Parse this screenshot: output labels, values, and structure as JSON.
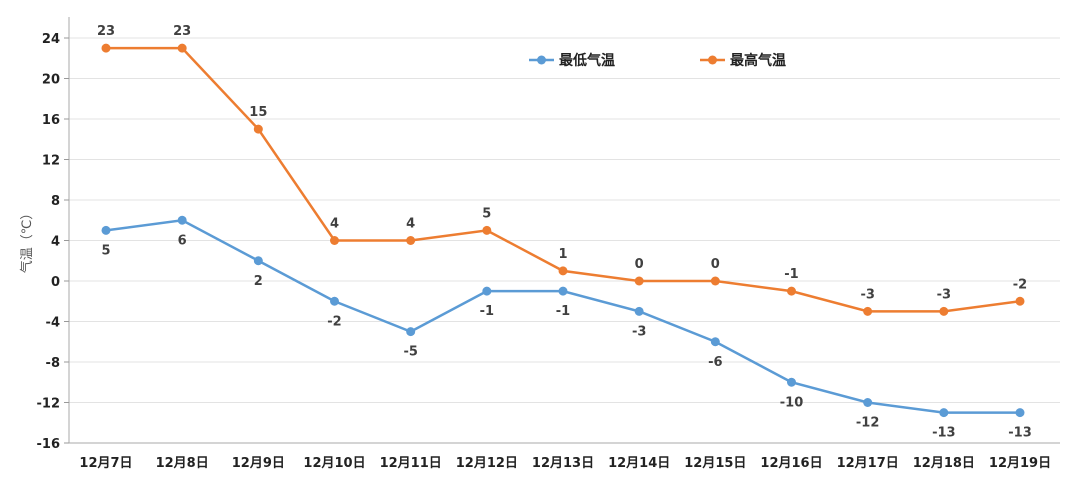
{
  "chart_data": {
    "type": "line",
    "title": "",
    "ylabel": "气温（℃）",
    "xlabel": "",
    "ylim": [
      -16,
      24
    ],
    "yticks": [
      24,
      20,
      16,
      12,
      8,
      4,
      0,
      -4,
      -8,
      -12,
      -16
    ],
    "grid": true,
    "legend_position": "top-center",
    "categories": [
      "12月7日",
      "12月8日",
      "12月9日",
      "12月10日",
      "12月11日",
      "12月12日",
      "12月13日",
      "12月14日",
      "12月15日",
      "12月16日",
      "12月17日",
      "12月18日",
      "12月19日"
    ],
    "series": [
      {
        "name": "最低气温",
        "color": "#5b9bd5",
        "label_position": "below",
        "values": [
          5,
          6,
          2,
          -2,
          -5,
          -1,
          -1,
          -3,
          -6,
          -10,
          -12,
          -13,
          -13
        ]
      },
      {
        "name": "最高气温",
        "color": "#ed7d31",
        "label_position": "above",
        "values": [
          23,
          23,
          15,
          4,
          4,
          5,
          1,
          0,
          0,
          -1,
          -3,
          -3,
          -2
        ]
      }
    ]
  }
}
